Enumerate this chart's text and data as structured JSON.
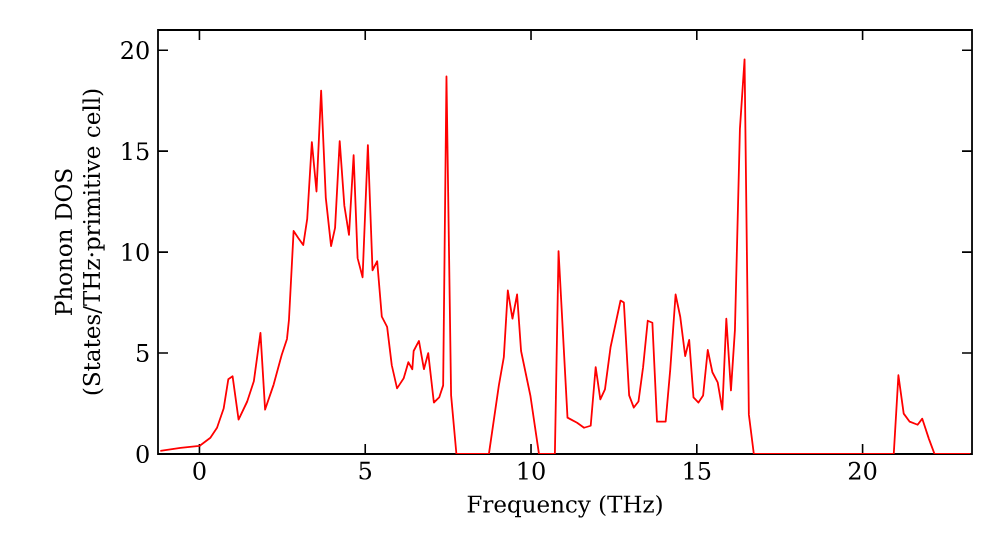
{
  "chart_data": {
    "type": "line",
    "xlabel": "Frequency (THz)",
    "ylabel": "Phonon DOS (States/THz·primitive cell)",
    "xlim": [
      -1.25,
      23.3
    ],
    "ylim": [
      0,
      21
    ],
    "xticks": [
      0,
      5,
      10,
      15,
      20
    ],
    "yticks": [
      0,
      5,
      10,
      15,
      20
    ],
    "marker": "none",
    "line_style": "solid",
    "series": [
      {
        "color": "#ff0000",
        "x": [
          -1.18,
          -0.57,
          0.0,
          0.33,
          0.53,
          0.73,
          0.87,
          1.0,
          1.18,
          1.44,
          1.64,
          1.84,
          1.98,
          2.24,
          2.48,
          2.64,
          2.7,
          2.84,
          2.98,
          3.13,
          3.25,
          3.39,
          3.53,
          3.67,
          3.81,
          3.97,
          4.09,
          4.23,
          4.37,
          4.51,
          4.65,
          4.77,
          4.92,
          5.08,
          5.22,
          5.36,
          5.5,
          5.66,
          5.8,
          5.96,
          6.16,
          6.3,
          6.42,
          6.46,
          6.62,
          6.77,
          6.9,
          7.07,
          7.23,
          7.35,
          7.45,
          7.59,
          7.75,
          8.73,
          9.03,
          9.18,
          9.3,
          9.44,
          9.58,
          9.7,
          9.98,
          10.24,
          10.72,
          10.83,
          11.1,
          11.39,
          11.6,
          11.8,
          11.95,
          12.09,
          12.23,
          12.4,
          12.7,
          12.8,
          12.96,
          13.1,
          13.24,
          13.38,
          13.52,
          13.66,
          13.8,
          14.06,
          14.2,
          14.36,
          14.5,
          14.65,
          14.77,
          14.9,
          15.05,
          15.19,
          15.33,
          15.47,
          15.63,
          15.77,
          15.89,
          16.03,
          16.15,
          16.3,
          16.44,
          16.57,
          16.72,
          20.94,
          21.08,
          21.24,
          21.42,
          21.66,
          21.8,
          22.0,
          22.17,
          23.25
        ],
        "values": [
          0.15,
          0.3,
          0.4,
          0.8,
          1.3,
          2.25,
          3.7,
          3.85,
          1.7,
          2.6,
          3.6,
          6.0,
          2.2,
          3.45,
          4.9,
          5.7,
          6.65,
          11.05,
          10.7,
          10.35,
          11.65,
          15.45,
          13.0,
          18.0,
          12.7,
          10.3,
          11.2,
          15.5,
          12.3,
          10.85,
          14.8,
          9.7,
          8.75,
          15.3,
          9.1,
          9.55,
          6.8,
          6.3,
          4.4,
          3.25,
          3.75,
          4.55,
          4.2,
          5.1,
          5.6,
          4.2,
          5.0,
          2.55,
          2.8,
          3.4,
          18.7,
          2.9,
          0,
          0,
          3.4,
          4.8,
          8.1,
          6.7,
          7.9,
          5.1,
          2.9,
          0,
          0,
          10.05,
          1.8,
          1.55,
          1.3,
          1.4,
          4.3,
          2.7,
          3.2,
          5.3,
          7.6,
          7.5,
          2.9,
          2.3,
          2.6,
          4.3,
          6.6,
          6.5,
          1.6,
          1.6,
          4.2,
          7.9,
          6.8,
          4.85,
          5.65,
          2.8,
          2.55,
          2.9,
          5.15,
          4.05,
          3.55,
          2.2,
          6.7,
          3.15,
          6.15,
          16.1,
          19.55,
          1.95,
          0,
          0,
          3.9,
          2.0,
          1.6,
          1.45,
          1.75,
          0.75,
          0,
          0
        ]
      }
    ]
  }
}
